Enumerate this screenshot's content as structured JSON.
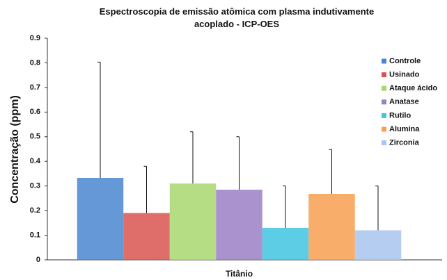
{
  "chart_data": {
    "type": "bar",
    "title": "Espectroscopia de emissão atômica com plasma indutivamente acoplado - ICP-OES",
    "y_label": "Concentração (ppm)",
    "categories": [
      "Titânio"
    ],
    "series": [
      {
        "name": "Controle",
        "color": "#4a86cf",
        "values": [
          0.333
        ],
        "errors": [
          0.47
        ]
      },
      {
        "name": "Usinado",
        "color": "#d9534f",
        "values": [
          0.19
        ],
        "errors": [
          0.19
        ]
      },
      {
        "name": "Ataque ácido",
        "color": "#a8d86e",
        "values": [
          0.31
        ],
        "errors": [
          0.21
        ]
      },
      {
        "name": "Anatase",
        "color": "#9b7fc7",
        "values": [
          0.285
        ],
        "errors": [
          0.215
        ]
      },
      {
        "name": "Rutilo",
        "color": "#40c4e0",
        "values": [
          0.13
        ],
        "errors": [
          0.17
        ]
      },
      {
        "name": "Alumina",
        "color": "#f7a050",
        "values": [
          0.268
        ],
        "errors": [
          0.18
        ]
      },
      {
        "name": "Zirconia",
        "color": "#a9c4f0",
        "values": [
          0.12
        ],
        "errors": [
          0.18
        ]
      }
    ],
    "ylim": [
      0,
      0.9
    ],
    "yticks": [
      0,
      0.1,
      0.2,
      0.3,
      0.4,
      0.5,
      0.6,
      0.7,
      0.8,
      0.9
    ],
    "grid": false,
    "legend": "right"
  }
}
